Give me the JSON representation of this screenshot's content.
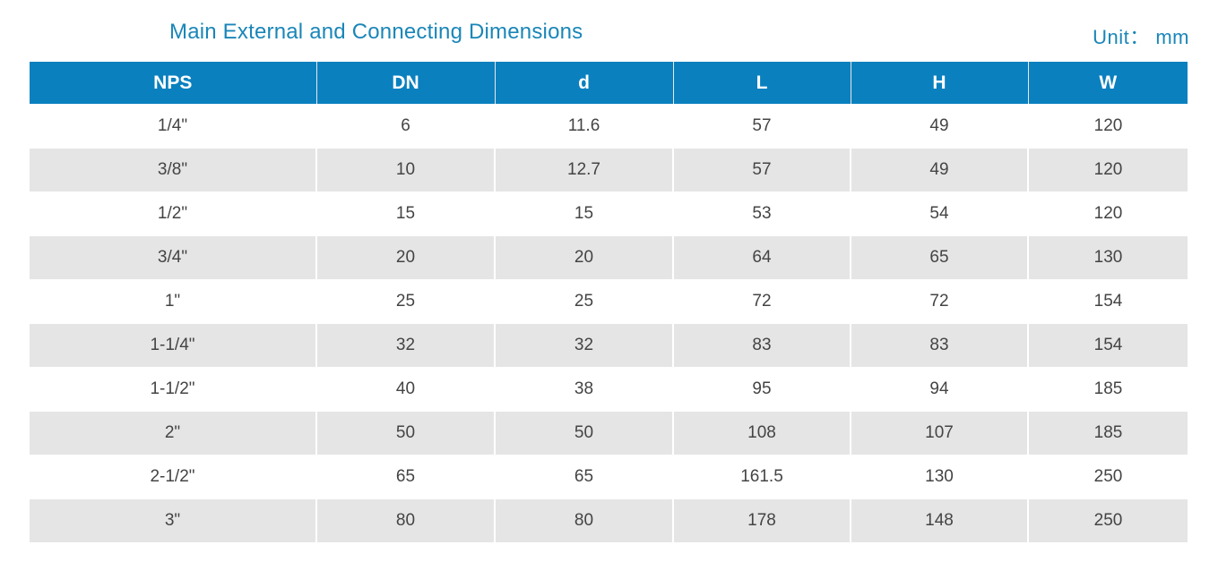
{
  "title": "Main External and Connecting Dimensions",
  "unit": "Unit： mm",
  "table": {
    "headers": [
      "NPS",
      "DN",
      "d",
      "L",
      "H",
      "W"
    ],
    "rows": [
      [
        "1/4\"",
        "6",
        "11.6",
        "57",
        "49",
        "120"
      ],
      [
        "3/8\"",
        "10",
        "12.7",
        "57",
        "49",
        "120"
      ],
      [
        "1/2\"",
        "15",
        "15",
        "53",
        "54",
        "120"
      ],
      [
        "3/4\"",
        "20",
        "20",
        "64",
        "65",
        "130"
      ],
      [
        "1\"",
        "25",
        "25",
        "72",
        "72",
        "154"
      ],
      [
        "1-1/4\"",
        "32",
        "32",
        "83",
        "83",
        "154"
      ],
      [
        "1-1/2\"",
        "40",
        "38",
        "95",
        "94",
        "185"
      ],
      [
        "2\"",
        "50",
        "50",
        "108",
        "107",
        "185"
      ],
      [
        "2-1/2\"",
        "65",
        "65",
        "161.5",
        "130",
        "250"
      ],
      [
        "3\"",
        "80",
        "80",
        "178",
        "148",
        "250"
      ]
    ]
  },
  "colors": {
    "header_bg": "#0a80bf",
    "title_text": "#1a86b8",
    "stripe": "#e5e5e5"
  }
}
